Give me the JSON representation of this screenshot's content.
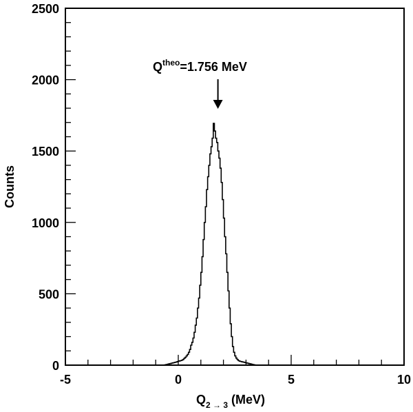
{
  "chart_data": {
    "type": "bar",
    "subtype": "histogram-step",
    "title": "",
    "xlabel": "Q_{2→3} (MeV)",
    "xlabel_parts": {
      "main": "Q",
      "sub": "2 → 3",
      "unit": " (MeV)"
    },
    "ylabel": "Counts",
    "xlim": [
      -5,
      10
    ],
    "ylim": [
      0,
      2500
    ],
    "x_ticks_major": [
      -5,
      0,
      5,
      10
    ],
    "x_tick_labels": [
      "-5",
      "0",
      "5",
      "10"
    ],
    "x_minor_step": 1,
    "y_ticks_major": [
      0,
      500,
      1000,
      1500,
      2000,
      2500
    ],
    "y_tick_labels": [
      "0",
      "500",
      "1000",
      "1500",
      "2000",
      "2500"
    ],
    "y_minor_step": 100,
    "grid": false,
    "legend": null,
    "bin_width": 0.05,
    "bin_start": -0.6,
    "values": [
      2,
      4,
      6,
      8,
      10,
      12,
      14,
      16,
      18,
      20,
      22,
      25,
      28,
      30,
      32,
      35,
      40,
      48,
      55,
      65,
      75,
      90,
      110,
      140,
      160,
      190,
      230,
      280,
      330,
      400,
      470,
      560,
      650,
      760,
      880,
      1000,
      1110,
      1230,
      1320,
      1400,
      1480,
      1530,
      1590,
      1694,
      1640,
      1590,
      1560,
      1500,
      1450,
      1380,
      1280,
      1160,
      1030,
      900,
      780,
      650,
      520,
      400,
      290,
      200,
      130,
      90,
      65,
      50,
      40,
      32,
      28,
      26,
      24,
      22,
      20,
      18,
      16,
      14,
      12,
      10,
      8,
      6,
      4,
      2
    ],
    "annotations": [
      {
        "text_main": "Q",
        "text_sup": "theo",
        "text_rest": "=1.756 MeV",
        "arrow_x": 1.756,
        "type": "arrow-down"
      }
    ]
  }
}
